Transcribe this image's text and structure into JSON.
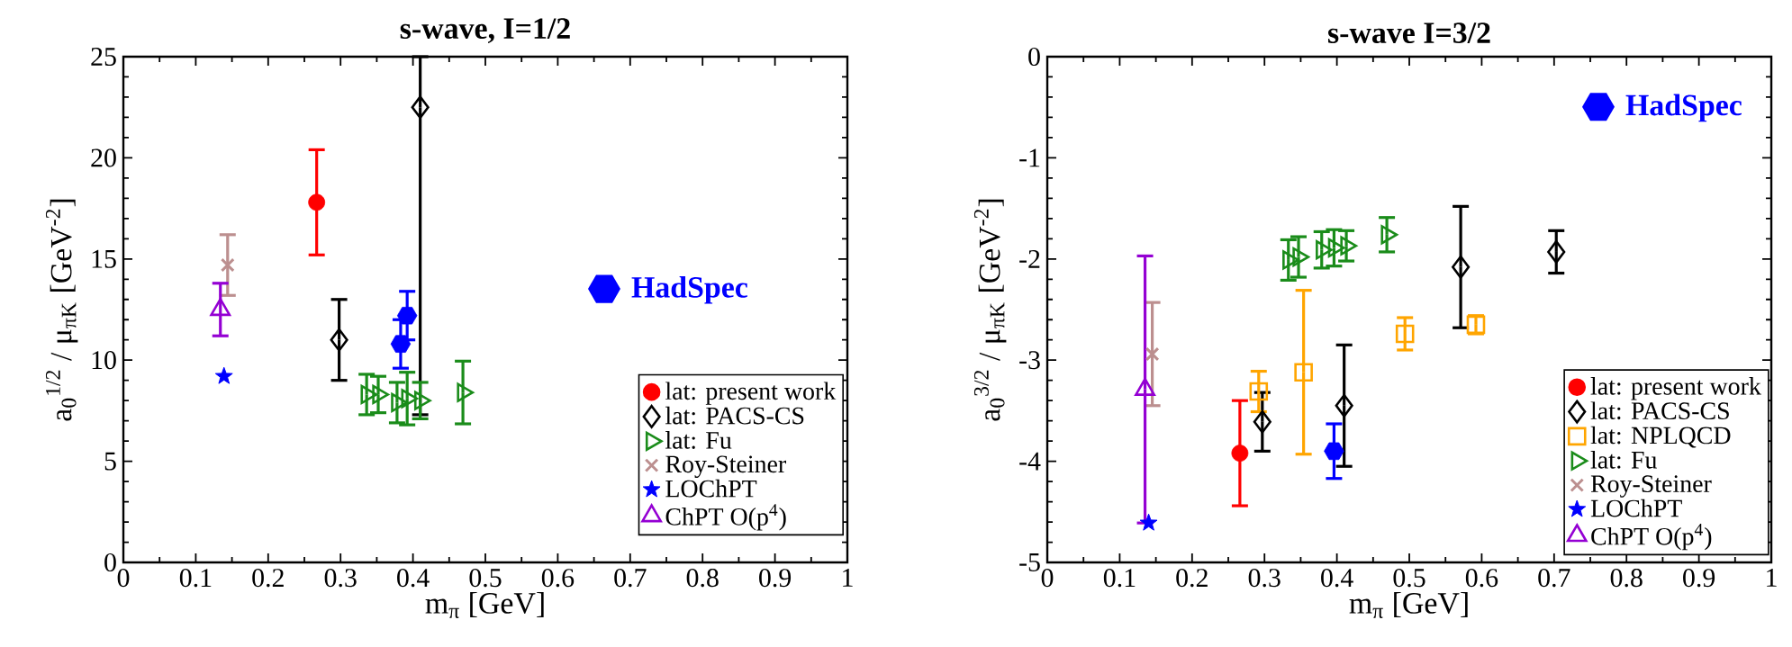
{
  "chart_data": [
    {
      "type": "scatter",
      "title": "s-wave, I=1/2",
      "xlabel": "m$_{π}$ [GeV]",
      "ylabel": "a$_{0}$$^{1/2}$ / μ$_{πK}$ [GeV$^{-2}$]",
      "xlim": [
        0,
        1
      ],
      "ylim": [
        0,
        25
      ],
      "xticks": [
        0,
        0.1,
        0.2,
        0.3,
        0.4,
        0.5,
        0.6,
        0.7,
        0.8,
        0.9,
        1
      ],
      "yticks": [
        0,
        5,
        10,
        15,
        20,
        25
      ],
      "grid": false,
      "legend": "right",
      "series": [
        {
          "name": "lat: present work",
          "color": "#ff0000",
          "marker": "circle",
          "x": [
            0.267
          ],
          "values": [
            17.8
          ],
          "errors": [
            2.6
          ]
        },
        {
          "name": "lat: PACS-CS",
          "color": "#000000",
          "marker": "diamond",
          "x": [
            0.298,
            0.41
          ],
          "values": [
            11.0,
            22.5
          ],
          "errors": [
            2.0,
            [
              7.3,
              25
            ]
          ]
        },
        {
          "name": "lat: Fu",
          "color": "#1a8c1a",
          "marker": "triangle-right",
          "x": [
            0.336,
            0.352,
            0.378,
            0.392,
            0.41,
            0.469
          ],
          "values": [
            8.3,
            8.3,
            7.9,
            8.1,
            8.0,
            8.4
          ],
          "errors": [
            1.0,
            0.9,
            1.0,
            1.3,
            0.9,
            1.55
          ]
        },
        {
          "name": "Roy-Steiner",
          "color": "#bc8f8f",
          "marker": "cross",
          "x": [
            0.144
          ],
          "values": [
            14.7
          ],
          "errors": [
            1.5
          ]
        },
        {
          "name": "LOChPT",
          "color": "#0000ff",
          "marker": "star",
          "x": [
            0.139
          ],
          "values": [
            9.2
          ]
        },
        {
          "name": "ChPT O(p$^{4}$)",
          "color": "#9400d3",
          "marker": "triangle",
          "x": [
            0.134
          ],
          "values": [
            12.5
          ],
          "errors": [
            1.3
          ]
        },
        {
          "name": "HadSpec",
          "color": "#0000ff",
          "x": [
            0.392,
            0.383
          ],
          "values": [
            12.2,
            10.8
          ],
          "errors": [
            1.2,
            1.2
          ]
        }
      ]
    },
    {
      "type": "scatter",
      "title": "s-wave I=3/2",
      "xlabel": "m$_{π}$ [GeV]",
      "ylabel": "a$_{0}$$^{3/2}$ / μ$_{πK}$ [GeV$^{-2}$]",
      "xlim": [
        0,
        1
      ],
      "ylim": [
        -5,
        0
      ],
      "xticks": [
        0,
        0.1,
        0.2,
        0.3,
        0.4,
        0.5,
        0.6,
        0.7,
        0.8,
        0.9,
        1
      ],
      "yticks": [
        -5,
        -4,
        -3,
        -2,
        -1,
        0
      ],
      "grid": false,
      "legend": "bottom right",
      "series": [
        {
          "name": "lat: present work",
          "color": "#ff0000",
          "marker": "circle",
          "x": [
            0.266
          ],
          "values": [
            -3.92
          ],
          "errors": [
            0.52
          ]
        },
        {
          "name": "lat: PACS-CS",
          "color": "#000000",
          "marker": "diamond",
          "x": [
            0.297,
            0.41,
            0.571,
            0.703
          ],
          "values": [
            -3.61,
            -3.45,
            -2.08,
            -1.93
          ],
          "errors": [
            0.29,
            0.6,
            0.6,
            0.21
          ]
        },
        {
          "name": "lat: NPLQCD",
          "color": "#ffa500",
          "marker": "square",
          "x": [
            0.292,
            0.354,
            0.494,
            0.592
          ],
          "values": [
            -3.31,
            -3.12,
            -2.74,
            -2.65
          ],
          "errors": [
            0.2,
            0.81,
            0.16,
            0.09
          ]
        },
        {
          "name": "lat: Fu",
          "color": "#1a8c1a",
          "marker": "triangle-right",
          "x": [
            0.333,
            0.347,
            0.379,
            0.396,
            0.413,
            0.469
          ],
          "values": [
            -2.01,
            -1.98,
            -1.91,
            -1.89,
            -1.87,
            -1.76
          ],
          "errors": [
            0.2,
            0.2,
            0.18,
            0.18,
            0.15,
            0.17
          ]
        },
        {
          "name": "Roy-Steiner",
          "color": "#bc8f8f",
          "marker": "cross",
          "x": [
            0.145
          ],
          "values": [
            -2.94
          ],
          "errors": [
            0.51
          ]
        },
        {
          "name": "LOChPT",
          "color": "#0000ff",
          "marker": "star",
          "x": [
            0.14
          ],
          "values": [
            -4.61
          ]
        },
        {
          "name": "ChPT O(p$^{4}$)",
          "color": "#9400d3",
          "marker": "triangle",
          "x": [
            0.135
          ],
          "values": [
            -3.29
          ],
          "errors": [
            1.32
          ]
        },
        {
          "name": "HadSpec",
          "color": "#0000ff",
          "x": [
            0.396
          ],
          "values": [
            -3.9
          ],
          "errors": [
            0.27
          ]
        }
      ]
    }
  ]
}
